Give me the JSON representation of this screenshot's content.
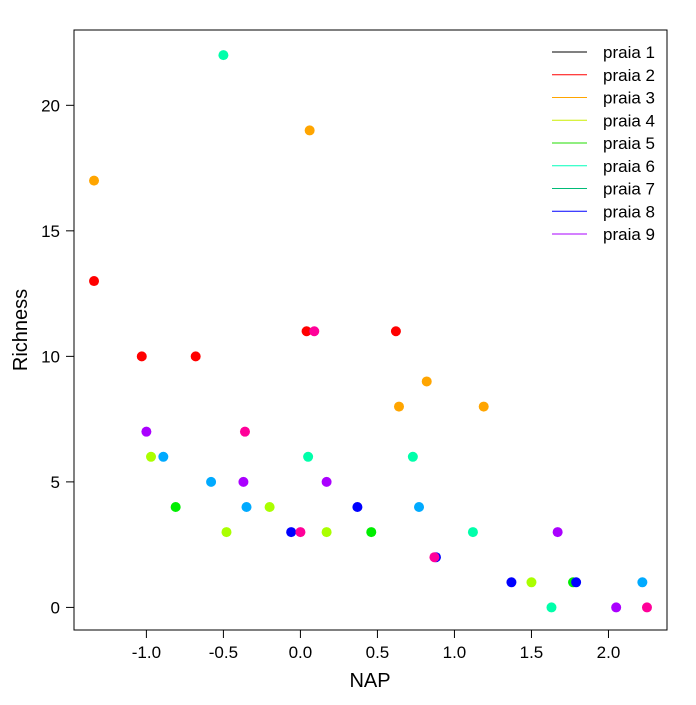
{
  "chart_data": {
    "type": "scatter",
    "xlabel": "NAP",
    "ylabel": "Richness",
    "xlim": [
      -1.47,
      2.38
    ],
    "ylim": [
      -0.9,
      23
    ],
    "x_ticks": [
      -1.0,
      -0.5,
      0.0,
      0.5,
      1.0,
      1.5,
      2.0
    ],
    "x_tick_labels": [
      "-1.0",
      "-0.5",
      "0.0",
      "0.5",
      "1.0",
      "1.5",
      "2.0"
    ],
    "y_ticks": [
      0,
      5,
      10,
      15,
      20
    ],
    "y_tick_labels": [
      "0",
      "5",
      "10",
      "15",
      "20"
    ],
    "legend_position": "top-right",
    "legend_entries": [
      {
        "label": "praia 1",
        "color": "#000000"
      },
      {
        "label": "praia 2",
        "color": "#ff0000"
      },
      {
        "label": "praia 3",
        "color": "#ffa500"
      },
      {
        "label": "praia 4",
        "color": "#ccee00"
      },
      {
        "label": "praia 5",
        "color": "#22dd00"
      },
      {
        "label": "praia 6",
        "color": "#00ffbb"
      },
      {
        "label": "praia 7",
        "color": "#00bb77"
      },
      {
        "label": "praia 8",
        "color": "#0000ff"
      },
      {
        "label": "praia 9",
        "color": "#aa00ff"
      }
    ],
    "points": [
      {
        "x": -0.5,
        "y": 22,
        "color": "#00ffaa"
      },
      {
        "x": 0.06,
        "y": 19,
        "color": "#ffa500"
      },
      {
        "x": -1.34,
        "y": 17,
        "color": "#ffa500"
      },
      {
        "x": -1.34,
        "y": 13,
        "color": "#ff0000"
      },
      {
        "x": 0.04,
        "y": 11,
        "color": "#ff0000"
      },
      {
        "x": 0.09,
        "y": 11,
        "color": "#ff0099"
      },
      {
        "x": 0.62,
        "y": 11,
        "color": "#ff0000"
      },
      {
        "x": -1.03,
        "y": 10,
        "color": "#ff0000"
      },
      {
        "x": -0.68,
        "y": 10,
        "color": "#ff0000"
      },
      {
        "x": 0.82,
        "y": 9,
        "color": "#ffa500"
      },
      {
        "x": 0.64,
        "y": 8,
        "color": "#ffa500"
      },
      {
        "x": 1.19,
        "y": 8,
        "color": "#ffa500"
      },
      {
        "x": -1.0,
        "y": 7,
        "color": "#aa00ff"
      },
      {
        "x": -0.36,
        "y": 7,
        "color": "#ff0099"
      },
      {
        "x": -0.97,
        "y": 6,
        "color": "#aaff00"
      },
      {
        "x": -0.89,
        "y": 6,
        "color": "#00aaff"
      },
      {
        "x": 0.05,
        "y": 6,
        "color": "#00ffaa"
      },
      {
        "x": 0.73,
        "y": 6,
        "color": "#00ffaa"
      },
      {
        "x": -0.58,
        "y": 5,
        "color": "#00aaff"
      },
      {
        "x": -0.37,
        "y": 5,
        "color": "#aa00ff"
      },
      {
        "x": 0.17,
        "y": 5,
        "color": "#aa00ff"
      },
      {
        "x": -0.81,
        "y": 4,
        "color": "#00ee00"
      },
      {
        "x": -0.35,
        "y": 4,
        "color": "#00aaff"
      },
      {
        "x": -0.2,
        "y": 4,
        "color": "#aaff00"
      },
      {
        "x": 0.37,
        "y": 4,
        "color": "#0000ff"
      },
      {
        "x": 0.77,
        "y": 4,
        "color": "#00aaff"
      },
      {
        "x": -0.48,
        "y": 3,
        "color": "#aaff00"
      },
      {
        "x": -0.06,
        "y": 3,
        "color": "#0000ff"
      },
      {
        "x": 0.0,
        "y": 3,
        "color": "#ff0099"
      },
      {
        "x": 0.17,
        "y": 3,
        "color": "#aaff00"
      },
      {
        "x": 0.46,
        "y": 3,
        "color": "#00ee00"
      },
      {
        "x": 1.12,
        "y": 3,
        "color": "#00ffaa"
      },
      {
        "x": 1.67,
        "y": 3,
        "color": "#aa00ff"
      },
      {
        "x": 0.88,
        "y": 2,
        "color": "#0000ff"
      },
      {
        "x": 0.87,
        "y": 2,
        "color": "#ff0099"
      },
      {
        "x": 1.37,
        "y": 1,
        "color": "#0000ff"
      },
      {
        "x": 1.5,
        "y": 1,
        "color": "#aaff00"
      },
      {
        "x": 1.77,
        "y": 1,
        "color": "#00ee00"
      },
      {
        "x": 1.79,
        "y": 1,
        "color": "#0000ff"
      },
      {
        "x": 2.22,
        "y": 1,
        "color": "#00aaff"
      },
      {
        "x": 1.63,
        "y": 0,
        "color": "#00ffaa"
      },
      {
        "x": 2.05,
        "y": 0,
        "color": "#aa00ff"
      },
      {
        "x": 2.25,
        "y": 0,
        "color": "#ff0099"
      }
    ]
  }
}
